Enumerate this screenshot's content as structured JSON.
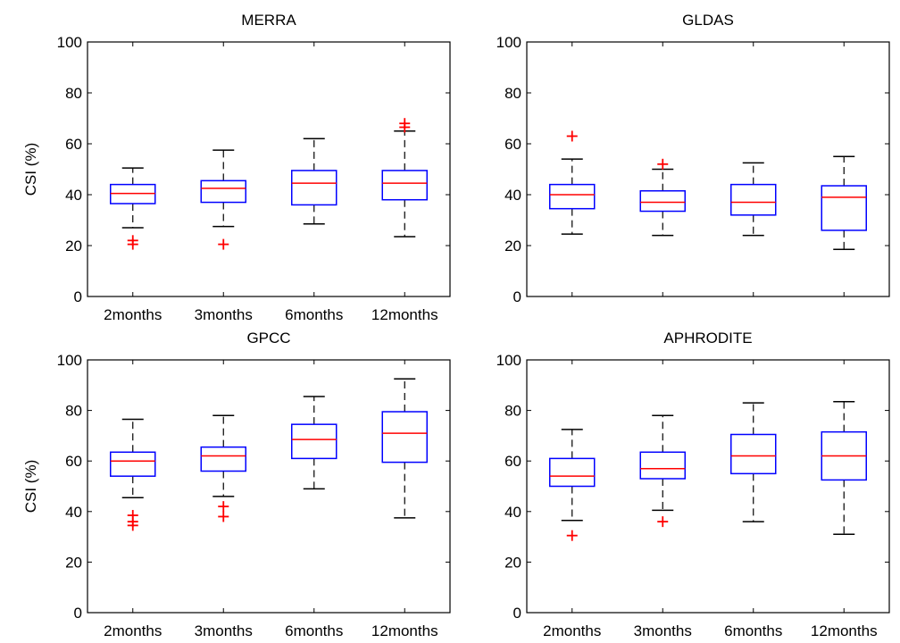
{
  "chart_data": [
    {
      "type": "box",
      "title": "MERRA",
      "ylabel": "CSI (%)",
      "ylim": [
        0,
        100
      ],
      "yticks": [
        0,
        20,
        40,
        60,
        80,
        100
      ],
      "categories": [
        "2months",
        "3months",
        "6months",
        "12months"
      ],
      "boxes": [
        {
          "whisker_low": 27,
          "q1": 36.5,
          "median": 40.5,
          "q3": 44,
          "whisker_high": 50.5,
          "outliers": [
            20.5,
            22
          ]
        },
        {
          "whisker_low": 27.5,
          "q1": 37,
          "median": 42.5,
          "q3": 45.5,
          "whisker_high": 57.5,
          "outliers": [
            20.5
          ]
        },
        {
          "whisker_low": 28.5,
          "q1": 36,
          "median": 44.5,
          "q3": 49.5,
          "whisker_high": 62,
          "outliers": []
        },
        {
          "whisker_low": 23.5,
          "q1": 38,
          "median": 44.5,
          "q3": 49.5,
          "whisker_high": 65,
          "outliers": [
            66.5,
            68
          ]
        }
      ],
      "colors": {
        "box": "#0000ff",
        "median": "#ff0000",
        "whisker": "#000000",
        "outlier": "#ff0000"
      }
    },
    {
      "type": "box",
      "title": "GLDAS",
      "ylabel": "",
      "ylim": [
        0,
        100
      ],
      "yticks": [
        0,
        20,
        40,
        60,
        80,
        100
      ],
      "categories": [
        "",
        "",
        "",
        ""
      ],
      "boxes": [
        {
          "whisker_low": 24.5,
          "q1": 34.5,
          "median": 40,
          "q3": 44,
          "whisker_high": 54,
          "outliers": [
            63
          ]
        },
        {
          "whisker_low": 24,
          "q1": 33.5,
          "median": 37,
          "q3": 41.5,
          "whisker_high": 50,
          "outliers": [
            52
          ]
        },
        {
          "whisker_low": 24,
          "q1": 32,
          "median": 37,
          "q3": 44,
          "whisker_high": 52.5,
          "outliers": []
        },
        {
          "whisker_low": 18.5,
          "q1": 26,
          "median": 39,
          "q3": 43.5,
          "whisker_high": 55,
          "outliers": []
        }
      ],
      "colors": {
        "box": "#0000ff",
        "median": "#ff0000",
        "whisker": "#000000",
        "outlier": "#ff0000"
      }
    },
    {
      "type": "box",
      "title": "GPCC",
      "ylabel": "CSI (%)",
      "ylim": [
        0,
        100
      ],
      "yticks": [
        0,
        20,
        40,
        60,
        80,
        100
      ],
      "categories": [
        "2months",
        "3months",
        "6months",
        "12months"
      ],
      "boxes": [
        {
          "whisker_low": 45.5,
          "q1": 54,
          "median": 60,
          "q3": 63.5,
          "whisker_high": 76.5,
          "outliers": [
            34.5,
            36,
            38.5
          ]
        },
        {
          "whisker_low": 46,
          "q1": 56,
          "median": 62,
          "q3": 65.5,
          "whisker_high": 78,
          "outliers": [
            38,
            42
          ]
        },
        {
          "whisker_low": 49,
          "q1": 61,
          "median": 68.5,
          "q3": 74.5,
          "whisker_high": 85.5,
          "outliers": []
        },
        {
          "whisker_low": 37.5,
          "q1": 59.5,
          "median": 71,
          "q3": 79.5,
          "whisker_high": 92.5,
          "outliers": []
        }
      ],
      "colors": {
        "box": "#0000ff",
        "median": "#ff0000",
        "whisker": "#000000",
        "outlier": "#ff0000"
      }
    },
    {
      "type": "box",
      "title": "APHRODITE",
      "ylabel": "",
      "ylim": [
        0,
        100
      ],
      "yticks": [
        0,
        20,
        40,
        60,
        80,
        100
      ],
      "categories": [
        "2months",
        "3months",
        "6months",
        "12months"
      ],
      "boxes": [
        {
          "whisker_low": 36.5,
          "q1": 50,
          "median": 54,
          "q3": 61,
          "whisker_high": 72.5,
          "outliers": [
            30.5
          ]
        },
        {
          "whisker_low": 40.5,
          "q1": 53,
          "median": 57,
          "q3": 63.5,
          "whisker_high": 78,
          "outliers": [
            36
          ]
        },
        {
          "whisker_low": 36,
          "q1": 55,
          "median": 62,
          "q3": 70.5,
          "whisker_high": 83,
          "outliers": []
        },
        {
          "whisker_low": 31,
          "q1": 52.5,
          "median": 62,
          "q3": 71.5,
          "whisker_high": 83.5,
          "outliers": []
        }
      ],
      "colors": {
        "box": "#0000ff",
        "median": "#ff0000",
        "whisker": "#000000",
        "outlier": "#ff0000"
      }
    }
  ]
}
